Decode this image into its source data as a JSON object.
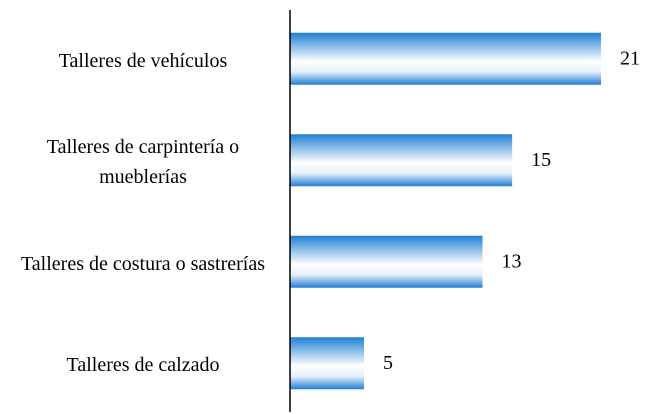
{
  "chart_data": {
    "type": "bar",
    "orientation": "horizontal",
    "categories": [
      "Talleres de vehículos",
      "Talleres de carpintería o mueblerías",
      "Talleres de costura o sastrerías",
      "Talleres de calzado"
    ],
    "values": [
      21,
      15,
      13,
      5
    ],
    "color": "#1f7fd4"
  }
}
